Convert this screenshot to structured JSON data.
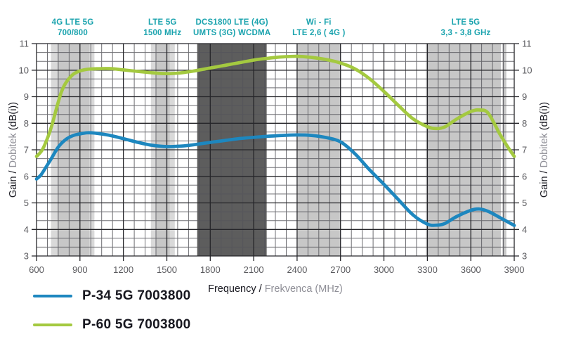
{
  "chart_data": {
    "type": "line",
    "title": "",
    "xlabel": "Frequency / Frekvenca (MHz)",
    "ylabel": "Gain / Dobitek (dB(i))",
    "xlim": [
      600,
      3900
    ],
    "ylim": [
      3,
      11
    ],
    "x_ticks": [
      600,
      900,
      1200,
      1500,
      1800,
      2100,
      2400,
      2700,
      3000,
      3300,
      3600,
      3900
    ],
    "y_ticks": [
      3,
      4,
      5,
      6,
      7,
      8,
      9,
      10,
      11
    ],
    "x_minor_step": 75,
    "x_major_step": 300,
    "y_minor_per_unit": 3,
    "grid": "on",
    "legend_position": "bottom-left",
    "axis_titles": {
      "x_primary": "Frequency / ",
      "x_secondary": "Frekvenca (MHz)",
      "y_primary": "Gain / ",
      "y_secondary": "Dobitek ",
      "y_tertiary": "(dB(i))"
    },
    "colors": {
      "band_label": "#1aa3ae",
      "grid_major": "#26262a",
      "grid_minor": "#55555a",
      "tick_label": "#5a5a5e",
      "text_dark": "#17171f",
      "text_gray": "#8f8f97"
    },
    "shade_colors": {
      "light": "#d9d9d9",
      "mid": "#c7c7c7",
      "dark": "#5d5d5d"
    },
    "bands": [
      {
        "label_line1": "4G LTE 5G",
        "label_line2": "700/800",
        "label_center_mhz": 850,
        "segments": [
          {
            "from": 700,
            "to": 1000,
            "shade": "light"
          },
          {
            "from": 745,
            "to": 965,
            "shade": "mid"
          }
        ]
      },
      {
        "label_line1": "LTE 5G",
        "label_line2": "1500 MHz",
        "label_center_mhz": 1470,
        "segments": [
          {
            "from": 1390,
            "to": 1555,
            "shade": "light"
          },
          {
            "from": 1425,
            "to": 1520,
            "shade": "mid"
          }
        ]
      },
      {
        "label_line1": "DCS1800 LTE (4G)",
        "label_line2": "UMTS (3G) WCDMA",
        "label_center_mhz": 1950,
        "segments": [
          {
            "from": 1710,
            "to": 2190,
            "shade": "dark"
          }
        ]
      },
      {
        "label_line1": "Wi - Fi",
        "label_line2": "LTE 2,6 ( 4G )",
        "label_center_mhz": 2550,
        "segments": [
          {
            "from": 2400,
            "to": 2700,
            "shade": "mid"
          }
        ]
      },
      {
        "label_line1": "LTE 5G",
        "label_line2": "3,3 - 3,8 GHz",
        "label_center_mhz": 3565,
        "segments": [
          {
            "from": 3290,
            "to": 3808,
            "shade": "mid"
          },
          {
            "from": 3818,
            "to": 3845,
            "shade": "mid"
          }
        ]
      }
    ],
    "series": [
      {
        "name": "P-34 5G 7003800",
        "color": "#1d87bf",
        "points": [
          [
            600,
            5.9
          ],
          [
            630,
            6.05
          ],
          [
            660,
            6.3
          ],
          [
            700,
            6.65
          ],
          [
            750,
            7.1
          ],
          [
            800,
            7.38
          ],
          [
            850,
            7.53
          ],
          [
            900,
            7.6
          ],
          [
            950,
            7.64
          ],
          [
            1000,
            7.63
          ],
          [
            1100,
            7.55
          ],
          [
            1200,
            7.42
          ],
          [
            1300,
            7.28
          ],
          [
            1400,
            7.17
          ],
          [
            1500,
            7.12
          ],
          [
            1600,
            7.14
          ],
          [
            1700,
            7.2
          ],
          [
            1800,
            7.28
          ],
          [
            1900,
            7.35
          ],
          [
            2000,
            7.42
          ],
          [
            2100,
            7.47
          ],
          [
            2200,
            7.51
          ],
          [
            2300,
            7.54
          ],
          [
            2400,
            7.56
          ],
          [
            2500,
            7.54
          ],
          [
            2600,
            7.46
          ],
          [
            2700,
            7.3
          ],
          [
            2800,
            6.85
          ],
          [
            2900,
            6.25
          ],
          [
            3000,
            5.7
          ],
          [
            3100,
            5.12
          ],
          [
            3200,
            4.55
          ],
          [
            3300,
            4.2
          ],
          [
            3360,
            4.16
          ],
          [
            3420,
            4.22
          ],
          [
            3500,
            4.48
          ],
          [
            3600,
            4.72
          ],
          [
            3660,
            4.77
          ],
          [
            3720,
            4.68
          ],
          [
            3800,
            4.45
          ],
          [
            3900,
            4.15
          ]
        ]
      },
      {
        "name": "P-60 5G 7003800",
        "color": "#a4c940",
        "points": [
          [
            600,
            6.75
          ],
          [
            640,
            7.0
          ],
          [
            680,
            7.5
          ],
          [
            710,
            8.0
          ],
          [
            740,
            8.6
          ],
          [
            770,
            9.15
          ],
          [
            800,
            9.5
          ],
          [
            850,
            9.83
          ],
          [
            900,
            9.97
          ],
          [
            950,
            10.03
          ],
          [
            1000,
            10.05
          ],
          [
            1100,
            10.06
          ],
          [
            1200,
            10.01
          ],
          [
            1300,
            9.95
          ],
          [
            1400,
            9.9
          ],
          [
            1500,
            9.87
          ],
          [
            1600,
            9.9
          ],
          [
            1700,
            9.98
          ],
          [
            1800,
            10.08
          ],
          [
            1900,
            10.18
          ],
          [
            2000,
            10.28
          ],
          [
            2100,
            10.38
          ],
          [
            2200,
            10.45
          ],
          [
            2300,
            10.5
          ],
          [
            2400,
            10.52
          ],
          [
            2500,
            10.48
          ],
          [
            2600,
            10.4
          ],
          [
            2700,
            10.27
          ],
          [
            2800,
            10.05
          ],
          [
            2900,
            9.68
          ],
          [
            3000,
            9.2
          ],
          [
            3100,
            8.67
          ],
          [
            3200,
            8.17
          ],
          [
            3300,
            7.87
          ],
          [
            3360,
            7.8
          ],
          [
            3420,
            7.86
          ],
          [
            3500,
            8.15
          ],
          [
            3600,
            8.44
          ],
          [
            3660,
            8.5
          ],
          [
            3720,
            8.38
          ],
          [
            3800,
            7.6
          ],
          [
            3850,
            7.15
          ],
          [
            3900,
            6.75
          ]
        ]
      }
    ]
  },
  "legend": {
    "item1": "P-34 5G 7003800",
    "item2": "P-60 5G 7003800"
  }
}
